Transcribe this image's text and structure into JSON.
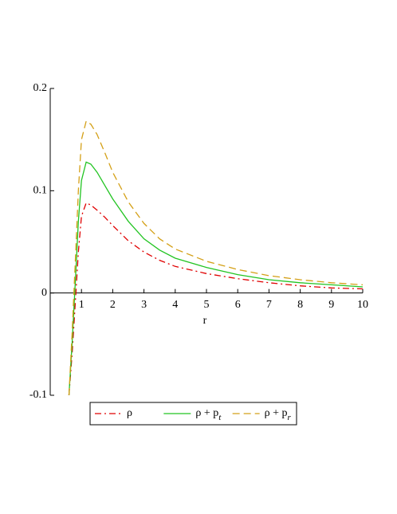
{
  "chart_data": {
    "type": "line",
    "xlabel": "r",
    "x": [
      0.6,
      0.7,
      0.8,
      0.9,
      1.0,
      1.15,
      1.3,
      1.5,
      1.75,
      2,
      2.5,
      3,
      3.5,
      4,
      5,
      6,
      7,
      8,
      9,
      10
    ],
    "series": [
      {
        "name": "ρ",
        "color": "#e00000",
        "dash": "dashdot",
        "values": [
          -0.1,
          -0.06,
          -0.01,
          0.04,
          0.075,
          0.088,
          0.086,
          0.081,
          0.074,
          0.066,
          0.051,
          0.04,
          0.032,
          0.026,
          0.019,
          0.014,
          0.01,
          0.007,
          0.005,
          0.004
        ]
      },
      {
        "name": "ρ + pt",
        "color": "#22c422",
        "dash": "solid",
        "values": [
          -0.1,
          -0.05,
          0.01,
          0.07,
          0.11,
          0.128,
          0.126,
          0.118,
          0.105,
          0.092,
          0.07,
          0.053,
          0.042,
          0.034,
          0.025,
          0.018,
          0.013,
          0.01,
          0.008,
          0.006
        ]
      },
      {
        "name": "ρ + pr",
        "color": "#d4a017",
        "dash": "dashed",
        "values": [
          -0.1,
          -0.04,
          0.03,
          0.1,
          0.15,
          0.168,
          0.165,
          0.155,
          0.137,
          0.118,
          0.089,
          0.068,
          0.053,
          0.043,
          0.031,
          0.023,
          0.017,
          0.013,
          0.01,
          0.008
        ]
      }
    ],
    "xlim": [
      0,
      10
    ],
    "xticks": [
      1,
      2,
      3,
      4,
      5,
      6,
      7,
      8,
      9,
      10
    ],
    "ylim": [
      -0.1,
      0.2
    ],
    "yticks": [
      -0.1,
      0,
      0.1,
      0.2
    ],
    "legend": "bottom",
    "grid": false
  }
}
